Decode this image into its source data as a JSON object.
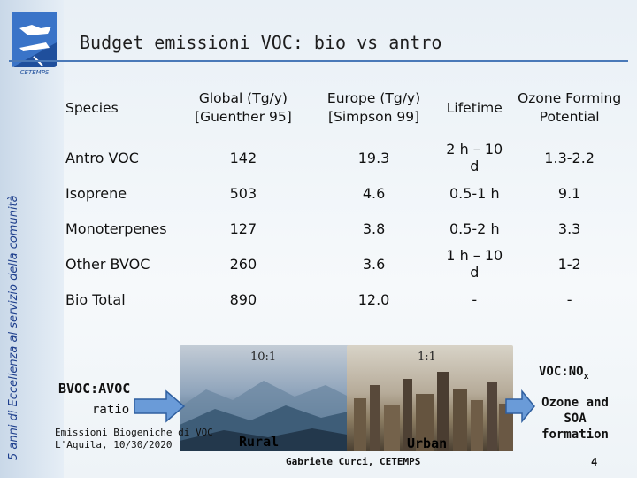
{
  "sidebar": {
    "vertical_text": "5 anni di Eccellenza al servizio della comunità",
    "logo_caption": "CETEMPS"
  },
  "title": "Budget emissioni VOC: bio vs antro",
  "table": {
    "headers": [
      "Species",
      "Global (Tg/y) [Guenther 95]",
      "Europe (Tg/y) [Simpson 99]",
      "Lifetime",
      "Ozone Forming Potential"
    ],
    "rows": [
      [
        "Antro VOC",
        "142",
        "19.3",
        "2 h – 10 d",
        "1.3-2.2"
      ],
      [
        "Isoprene",
        "503",
        "4.6",
        "0.5-1 h",
        "9.1"
      ],
      [
        "Monoterpenes",
        "127",
        "3.8",
        "0.5-2 h",
        "3.3"
      ],
      [
        "Other BVOC",
        "260",
        "3.6",
        "1 h – 10 d",
        "1-2"
      ],
      [
        "Bio Total",
        "890",
        "12.0",
        "-",
        "-"
      ]
    ]
  },
  "photos": {
    "rural": {
      "ratio": "10:1",
      "label": "Rural"
    },
    "urban": {
      "ratio": "1:1",
      "label": "Urban"
    }
  },
  "left_label": {
    "line1": "BVOC:AVOC",
    "line2": "ratio"
  },
  "right_label": {
    "voc_nox": "VOC:NO",
    "voc_nox_sub": "x",
    "ozone": "Ozone and SOA formation"
  },
  "footer": {
    "left_line1": "Emissioni Biogeniche di VOC",
    "left_line2": "L'Aquila, 10/30/2020",
    "center": "Gabriele Curci, CETEMPS",
    "page": "4"
  },
  "colors": {
    "accent": "#4a79b8",
    "sidebar_text": "#1d3e8c",
    "arrow_fill": "#6a9bd8",
    "arrow_stroke": "#2f5f9f"
  }
}
